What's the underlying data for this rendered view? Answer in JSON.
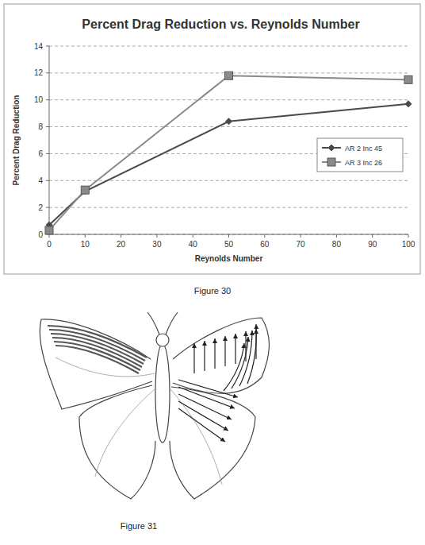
{
  "chart_data": {
    "type": "line",
    "title": "Percent Drag Reduction vs. Reynolds Number",
    "x_label": "Reynolds Number",
    "y_label": "Percent Drag Reduction",
    "x": [
      0,
      10,
      50,
      100
    ],
    "series": [
      {
        "name": "AR 2 Inc 45",
        "color": "#4a4a4a",
        "marker": "diamond",
        "line_style": "solid",
        "values": [
          0.7,
          3.2,
          8.4,
          9.7
        ]
      },
      {
        "name": "AR 3 Inc 26",
        "color": "#8a8a8a",
        "marker": "square",
        "line_style": "solid",
        "values": [
          0.3,
          3.3,
          11.8,
          11.5
        ]
      }
    ],
    "xlim": [
      0,
      100
    ],
    "xticks": [
      0,
      10,
      20,
      30,
      40,
      50,
      60,
      70,
      80,
      90,
      100
    ],
    "ylim": [
      0,
      14
    ],
    "yticks": [
      0,
      2,
      4,
      6,
      8,
      10,
      12,
      14
    ],
    "grid": true,
    "legend": "right"
  },
  "figures": [
    {
      "caption": "Figure 30"
    },
    {
      "caption": "Figure 31"
    }
  ]
}
